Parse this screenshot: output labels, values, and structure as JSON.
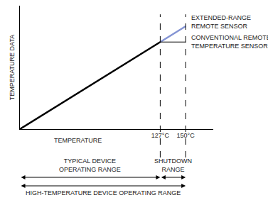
{
  "chart_data": {
    "type": "line",
    "x_label": "TEMPERATURE",
    "y_label": "TEMPERATURE DATA",
    "xlim": [
      0,
      175
    ],
    "ylim": [
      0,
      180
    ],
    "xticks": [
      {
        "value": 127,
        "label": "127°C"
      },
      {
        "value": 150,
        "label": "150°C"
      }
    ],
    "yticks": [],
    "tick_labels": "x",
    "grid": false,
    "series": [
      {
        "x": [
          0,
          127
        ],
        "values": [
          0,
          127
        ],
        "color": "#000000",
        "line_style": "thick"
      },
      {
        "name": "EXTENDED-RANGE\nREMOTE SENSOR",
        "x": [
          127,
          150
        ],
        "values": [
          127,
          150
        ],
        "color": "#8494d4",
        "line_style": "thick"
      },
      {
        "name": "CONVENTIONAL REMOTE\nTEMPERATURE SENSOR",
        "x": [
          127,
          150
        ],
        "values": [
          127,
          127
        ],
        "color": "#000000",
        "line_style": "thin"
      }
    ],
    "ranges": [
      {
        "label": "TYPICAL DEVICE\nOPERATING RANGE",
        "from": 0,
        "to": 127
      },
      {
        "label": "SHUTDOWN\nRANGE",
        "from": 127,
        "to": 150
      },
      {
        "label": "HIGH-TEMPERATURE DEVICE OPERATING RANGE",
        "from": 0,
        "to": 150
      }
    ]
  }
}
